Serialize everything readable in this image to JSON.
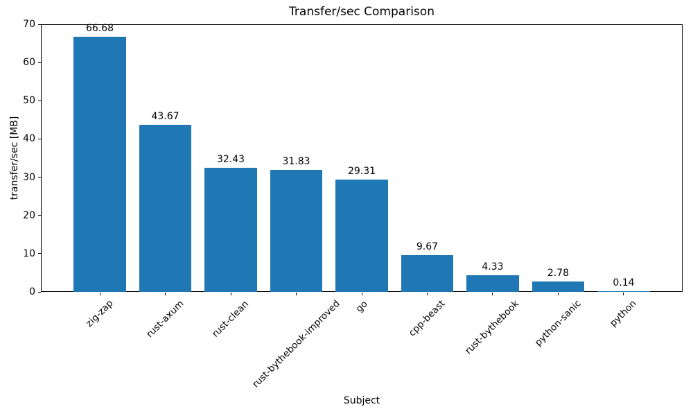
{
  "chart_data": {
    "type": "bar",
    "title": "Transfer/sec Comparison",
    "xlabel": "Subject",
    "ylabel": "transfer/sec [MB]",
    "categories": [
      "zig-zap",
      "rust-axum",
      "rust-clean",
      "rust-bythebook-improved",
      "go",
      "cpp-beast",
      "rust-bythebook",
      "python-sanic",
      "python"
    ],
    "values": [
      66.68,
      43.67,
      32.43,
      31.83,
      29.31,
      9.67,
      4.33,
      2.78,
      0.14
    ],
    "value_labels": [
      "66.68",
      "43.67",
      "32.43",
      "31.83",
      "29.31",
      "9.67",
      "4.33",
      "2.78",
      "0.14"
    ],
    "ylim": [
      0,
      70
    ],
    "yticks": [
      0,
      10,
      20,
      30,
      40,
      50,
      60,
      70
    ],
    "xtick_rotation_deg": 45,
    "grid": false,
    "legend": "none",
    "bar_color": "#1f77b4",
    "axis_color": "#000000",
    "text_color": "#000000",
    "background_color": "#ffffff"
  }
}
